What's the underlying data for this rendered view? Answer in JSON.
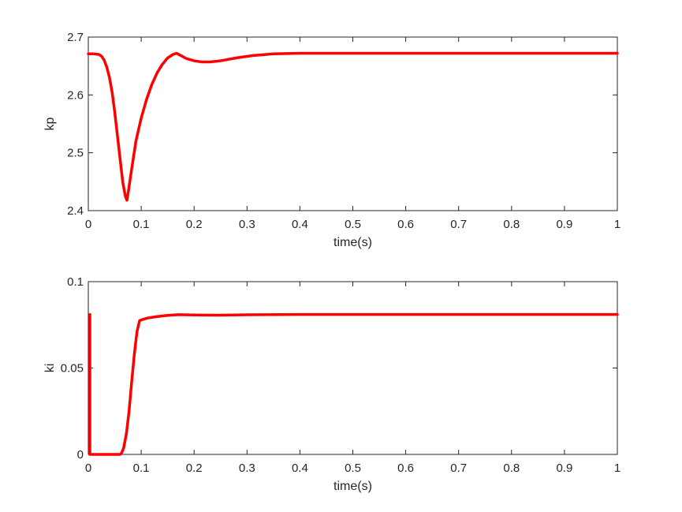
{
  "chart_data": [
    {
      "type": "line",
      "title": "",
      "xlabel": "time(s)",
      "ylabel": "kp",
      "xlim": [
        0,
        1
      ],
      "ylim": [
        2.4,
        2.7
      ],
      "xticks": [
        0,
        0.1,
        0.2,
        0.3,
        0.4,
        0.5,
        0.6,
        0.7,
        0.8,
        0.9,
        1
      ],
      "xtick_labels": [
        "0",
        "0.1",
        "0.2",
        "0.3",
        "0.4",
        "0.5",
        "0.6",
        "0.7",
        "0.8",
        "0.9",
        "1"
      ],
      "yticks": [
        2.4,
        2.5,
        2.6,
        2.7
      ],
      "ytick_labels": [
        "2.4",
        "2.5",
        "2.6",
        "2.7"
      ],
      "grid": false,
      "series": [
        {
          "color": "#ff0000",
          "x": [
            0,
            0.01,
            0.02,
            0.025,
            0.03,
            0.035,
            0.04,
            0.045,
            0.05,
            0.055,
            0.06,
            0.065,
            0.07,
            0.073,
            0.076,
            0.08,
            0.085,
            0.09,
            0.1,
            0.11,
            0.12,
            0.13,
            0.14,
            0.15,
            0.16,
            0.167,
            0.175,
            0.185,
            0.2,
            0.215,
            0.23,
            0.25,
            0.28,
            0.31,
            0.35,
            0.4,
            0.5,
            0.6,
            0.7,
            0.8,
            0.9,
            1.0
          ],
          "y": [
            2.671,
            2.671,
            2.67,
            2.667,
            2.66,
            2.648,
            2.63,
            2.605,
            2.57,
            2.53,
            2.49,
            2.45,
            2.425,
            2.418,
            2.435,
            2.46,
            2.49,
            2.52,
            2.56,
            2.592,
            2.618,
            2.638,
            2.653,
            2.664,
            2.67,
            2.672,
            2.668,
            2.663,
            2.659,
            2.657,
            2.657,
            2.659,
            2.664,
            2.668,
            2.671,
            2.672,
            2.672,
            2.672,
            2.672,
            2.672,
            2.672,
            2.672
          ]
        }
      ]
    },
    {
      "type": "line",
      "title": "",
      "xlabel": "time(s)",
      "ylabel": "ki",
      "xlim": [
        0,
        1
      ],
      "ylim": [
        0,
        0.1
      ],
      "xticks": [
        0,
        0.1,
        0.2,
        0.3,
        0.4,
        0.5,
        0.6,
        0.7,
        0.8,
        0.9,
        1
      ],
      "xtick_labels": [
        "0",
        "0.1",
        "0.2",
        "0.3",
        "0.4",
        "0.5",
        "0.6",
        "0.7",
        "0.8",
        "0.9",
        "1"
      ],
      "yticks": [
        0,
        0.05,
        0.1
      ],
      "ytick_labels": [
        "0",
        "0.05",
        "0.1"
      ],
      "grid": false,
      "series": [
        {
          "color": "#ff0000",
          "x": [
            0.003,
            0.003,
            0.004,
            0.03,
            0.06,
            0.063,
            0.067,
            0.072,
            0.077,
            0.082,
            0.087,
            0.092,
            0.097,
            0.11,
            0.13,
            0.15,
            0.17,
            0.2,
            0.25,
            0.3,
            0.4,
            0.5,
            0.6,
            0.7,
            0.8,
            0.9,
            1.0
          ],
          "y": [
            0.081,
            0.0,
            0.0,
            0.0,
            0.0,
            0.0008,
            0.004,
            0.012,
            0.025,
            0.042,
            0.058,
            0.071,
            0.0775,
            0.0788,
            0.0798,
            0.0805,
            0.0809,
            0.0807,
            0.0806,
            0.0808,
            0.081,
            0.081,
            0.081,
            0.081,
            0.081,
            0.081,
            0.081
          ]
        }
      ]
    }
  ]
}
